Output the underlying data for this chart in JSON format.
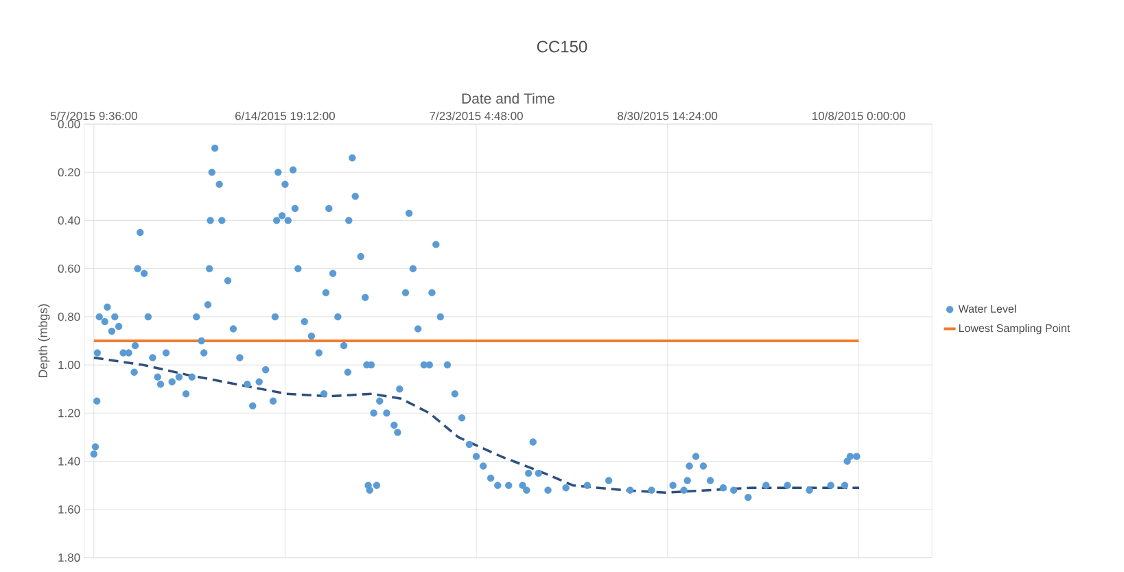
{
  "chart_data": {
    "type": "scatter",
    "title": "CC150",
    "xlabel": "Date and Time",
    "ylabel": "Depth (mbgs)",
    "xlim": [
      "2015-05-05T12:00",
      "2015-10-22T16:48"
    ],
    "xticks": [
      {
        "value": "2015-05-07T09:36",
        "label": "5/7/2015 9:36:00"
      },
      {
        "value": "2015-06-14T19:12",
        "label": "6/14/2015 19:12:00"
      },
      {
        "value": "2015-07-23T04:48",
        "label": "7/23/2015 4:48:00"
      },
      {
        "value": "2015-08-30T14:24",
        "label": "8/30/2015 14:24:00"
      },
      {
        "value": "2015-10-08T00:00",
        "label": "10/8/2015 0:00:00"
      }
    ],
    "ylim": [
      1.8,
      0
    ],
    "yticks": [
      {
        "value": 0,
        "label": "0.00"
      },
      {
        "value": 0.2,
        "label": "0.20"
      },
      {
        "value": 0.4,
        "label": "0.40"
      },
      {
        "value": 0.6,
        "label": "0.60"
      },
      {
        "value": 0.8,
        "label": "0.80"
      },
      {
        "value": 1,
        "label": "1.00"
      },
      {
        "value": 1.2,
        "label": "1.20"
      },
      {
        "value": 1.4,
        "label": "1.40"
      },
      {
        "value": 1.6,
        "label": "1.60"
      },
      {
        "value": 1.8,
        "label": "1.80"
      }
    ],
    "grid": true,
    "legend": "right",
    "marker": "circle",
    "series": [
      {
        "name": "Water Level",
        "color": "#5b9bd5",
        "x": [
          "2015-05-07T09:36",
          "2015-05-07T16:48",
          "2015-05-08T00:00",
          "2015-05-08T02:24",
          "2015-05-08T12:00",
          "2015-05-09T14:24",
          "2015-05-10T02:24",
          "2015-05-11T00:00",
          "2015-05-11T14:24",
          "2015-05-12T09:36",
          "2015-05-13T07:12",
          "2015-05-14T09:36",
          "2015-05-15T12:00",
          "2015-05-15T16:48",
          "2015-05-16T04:48",
          "2015-05-16T16:48",
          "2015-05-17T12:00",
          "2015-05-18T07:12",
          "2015-05-19T04:48",
          "2015-05-20T04:48",
          "2015-05-20T19:12",
          "2015-05-21T21:36",
          "2015-05-23T02:24",
          "2015-05-24T12:00",
          "2015-05-25T21:36",
          "2015-05-27T02:24",
          "2015-05-28T00:00",
          "2015-05-29T00:00",
          "2015-05-29T12:00",
          "2015-05-30T07:12",
          "2015-05-30T14:24",
          "2015-05-30T19:12",
          "2015-05-31T02:24",
          "2015-05-31T16:48",
          "2015-06-01T14:24",
          "2015-06-02T02:24",
          "2015-06-03T07:12",
          "2015-06-04T09:36",
          "2015-06-05T16:48",
          "2015-06-07T04:48",
          "2015-06-08T07:12",
          "2015-06-09T14:24",
          "2015-06-10T21:36",
          "2015-06-12T09:36",
          "2015-06-12T19:12",
          "2015-06-13T02:24",
          "2015-06-13T09:36",
          "2015-06-14T04:48",
          "2015-06-14T19:12",
          "2015-06-15T09:36",
          "2015-06-16T09:36",
          "2015-06-16T19:12",
          "2015-06-17T09:36",
          "2015-06-18T16:48",
          "2015-06-20T02:24",
          "2015-06-21T14:24",
          "2015-06-22T14:24",
          "2015-06-23T00:00",
          "2015-06-23T14:24",
          "2015-06-24T09:36",
          "2015-06-25T09:36",
          "2015-06-26T14:24",
          "2015-06-27T09:36",
          "2015-06-27T14:24",
          "2015-06-28T07:12",
          "2015-06-28T21:36",
          "2015-06-30T00:00",
          "2015-06-30T21:36",
          "2015-07-01T04:48",
          "2015-07-01T12:00",
          "2015-07-01T19:12",
          "2015-07-02T02:24",
          "2015-07-02T14:24",
          "2015-07-03T04:48",
          "2015-07-03T19:12",
          "2015-07-05T04:48",
          "2015-07-06T16:48",
          "2015-07-07T09:36",
          "2015-07-07T19:12",
          "2015-07-09T00:00",
          "2015-07-09T16:48",
          "2015-07-10T12:00",
          "2015-07-11T12:00",
          "2015-07-12T16:48",
          "2015-07-13T19:12",
          "2015-07-14T07:12",
          "2015-07-15T02:24",
          "2015-07-16T00:00",
          "2015-07-17T09:36",
          "2015-07-18T21:36",
          "2015-07-20T07:12",
          "2015-07-21T19:12",
          "2015-07-23T04:48",
          "2015-07-24T14:24",
          "2015-07-26T02:24",
          "2015-07-27T12:00",
          "2015-07-29T16:48",
          "2015-08-01T12:00",
          "2015-08-02T07:12",
          "2015-08-02T16:48",
          "2015-08-03T14:24",
          "2015-08-04T16:48",
          "2015-08-06T14:24",
          "2015-08-10T04:48",
          "2015-08-14T12:00",
          "2015-08-18T19:12",
          "2015-08-23T02:24",
          "2015-08-27T09:36",
          "2015-08-31T16:48",
          "2015-09-02T21:36",
          "2015-09-03T14:24",
          "2015-09-04T00:00",
          "2015-09-05T07:12",
          "2015-09-06T19:12",
          "2015-09-08T04:48",
          "2015-09-10T19:12",
          "2015-09-12T21:36",
          "2015-09-15T19:12",
          "2015-09-19T09:36",
          "2015-09-23T16:48",
          "2015-09-28T02:24",
          "2015-10-02T09:36",
          "2015-10-05T04:48",
          "2015-10-05T16:48",
          "2015-10-06T07:12",
          "2015-10-07T14:24"
        ],
        "values": [
          1.37,
          1.34,
          1.15,
          0.95,
          0.8,
          0.82,
          0.76,
          0.86,
          0.8,
          0.84,
          0.95,
          0.95,
          1.03,
          0.92,
          0.6,
          0.45,
          0.62,
          0.8,
          0.97,
          1.05,
          1.08,
          0.95,
          1.07,
          1.05,
          1.12,
          1.05,
          0.8,
          0.9,
          0.95,
          0.75,
          0.6,
          0.4,
          0.2,
          0.1,
          0.25,
          0.4,
          0.65,
          0.85,
          0.97,
          1.08,
          1.17,
          1.07,
          1.02,
          1.15,
          0.8,
          0.4,
          0.2,
          0.38,
          0.25,
          0.4,
          0.19,
          0.35,
          0.6,
          0.82,
          0.88,
          0.95,
          1.12,
          0.7,
          0.35,
          0.62,
          0.8,
          0.92,
          1.03,
          0.4,
          0.14,
          0.3,
          0.55,
          0.72,
          1.0,
          1.5,
          1.52,
          1.0,
          1.2,
          1.5,
          1.15,
          1.2,
          1.25,
          1.28,
          1.1,
          0.7,
          0.37,
          0.6,
          0.85,
          1.0,
          1.0,
          0.7,
          0.5,
          0.8,
          1.0,
          1.12,
          1.22,
          1.33,
          1.38,
          1.42,
          1.47,
          1.5,
          1.5,
          1.5,
          1.52,
          1.45,
          1.32,
          1.45,
          1.52,
          1.51,
          1.5,
          1.48,
          1.52,
          1.52,
          1.5,
          1.52,
          1.48,
          1.42,
          1.38,
          1.42,
          1.48,
          1.51,
          1.52,
          1.55,
          1.5,
          1.5,
          1.52,
          1.5,
          1.5,
          1.4,
          1.38,
          1.38
        ]
      },
      {
        "name": "Lowest Sampling Point",
        "type": "line",
        "marker": "none",
        "color": "#ed7d31",
        "x": [
          "2015-05-07T09:36",
          "2015-10-08T00:00"
        ],
        "values": [
          0.9,
          0.9
        ]
      },
      {
        "type": "line",
        "marker": "none",
        "color": "#2f4f7f",
        "line_style": "dashed",
        "x": [
          "2015-05-07T09:36",
          "2015-05-17T07:12",
          "2015-05-25T21:36",
          "2015-06-05T00:00",
          "2015-06-15T02:24",
          "2015-06-23T16:48",
          "2015-07-02T07:12",
          "2015-07-08T02:24",
          "2015-07-13T19:12",
          "2015-07-19T14:24",
          "2015-07-28T04:48",
          "2015-08-05T21:36",
          "2015-08-11T14:24",
          "2015-08-21T16:48",
          "2015-08-30T07:12",
          "2015-09-07T21:36",
          "2015-09-16T14:24",
          "2015-10-08T02:24"
        ],
        "values": [
          0.97,
          1.0,
          1.04,
          1.08,
          1.12,
          1.13,
          1.12,
          1.14,
          1.2,
          1.3,
          1.38,
          1.45,
          1.5,
          1.52,
          1.53,
          1.52,
          1.51,
          1.51
        ]
      }
    ]
  }
}
